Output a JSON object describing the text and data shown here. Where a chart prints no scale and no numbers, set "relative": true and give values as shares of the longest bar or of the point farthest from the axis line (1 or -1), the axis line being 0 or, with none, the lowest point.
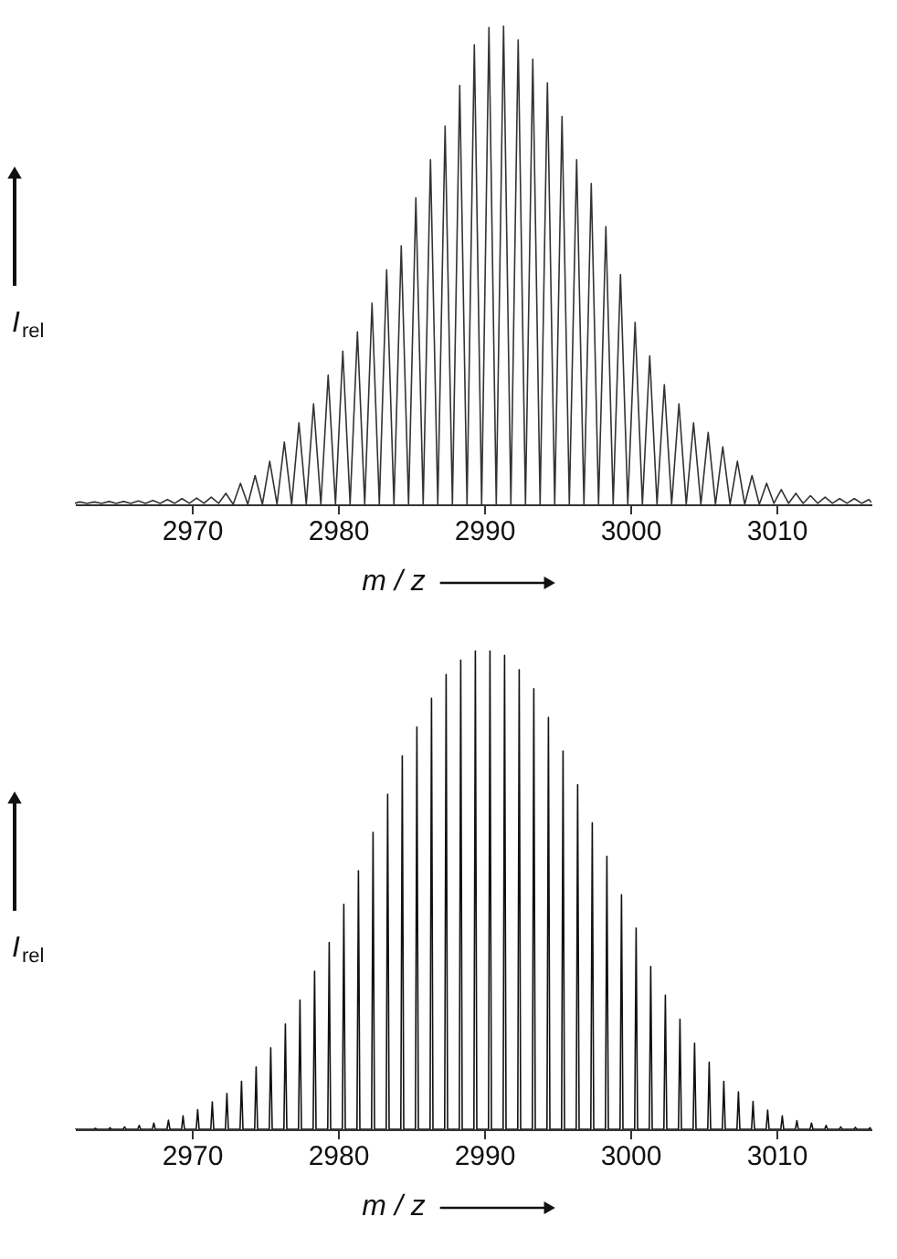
{
  "chart_data": [
    {
      "type": "line",
      "relative": true,
      "xlabel": "m / z",
      "ylabel": "I$_{rel}$",
      "xlim": [
        2962,
        3016.5
      ],
      "xticks": [
        2970,
        2980,
        2990,
        3000,
        3010
      ],
      "grid": false,
      "marker": "none",
      "line_style": "solid",
      "series": [
        {
          "color": "#333333",
          "x": [
            2962,
            2962.33,
            2962.83,
            2963.33,
            2963.83,
            2964.33,
            2964.83,
            2965.33,
            2965.83,
            2966.33,
            2966.83,
            2967.33,
            2967.83,
            2968.33,
            2968.83,
            2969.33,
            2969.83,
            2970.33,
            2970.83,
            2971.33,
            2971.83,
            2972.33,
            2972.83,
            2973.33,
            2973.83,
            2974.33,
            2974.83,
            2975.33,
            2975.83,
            2976.33,
            2976.83,
            2977.33,
            2977.83,
            2978.33,
            2978.83,
            2979.33,
            2979.83,
            2980.33,
            2980.83,
            2981.33,
            2981.83,
            2982.33,
            2982.83,
            2983.33,
            2983.83,
            2984.33,
            2984.83,
            2985.33,
            2985.83,
            2986.33,
            2986.83,
            2987.33,
            2987.83,
            2988.33,
            2988.83,
            2989.33,
            2989.83,
            2990.33,
            2990.83,
            2991.33,
            2991.83,
            2992.33,
            2992.83,
            2993.33,
            2993.83,
            2994.33,
            2994.83,
            2995.33,
            2995.83,
            2996.33,
            2996.83,
            2997.33,
            2997.83,
            2998.33,
            2998.83,
            2999.33,
            2999.83,
            3000.33,
            3000.83,
            3001.33,
            3001.83,
            3002.33,
            3002.83,
            3003.33,
            3003.83,
            3004.33,
            3004.83,
            3005.33,
            3005.83,
            3006.33,
            3006.83,
            3007.33,
            3007.83,
            3008.33,
            3008.83,
            3009.33,
            3009.83,
            3010.33,
            3010.83,
            3011.33,
            3011.83,
            3012.33,
            3012.83,
            3013.33,
            3013.83,
            3014.33,
            3014.83,
            3015.33,
            3015.83,
            3016.33,
            3016.5
          ],
          "values": [
            0.002,
            0.005,
            0.002,
            0.005,
            0.002,
            0.006,
            0.002,
            0.006,
            0.002,
            0.007,
            0.002,
            0.008,
            0.002,
            0.01,
            0.002,
            0.012,
            0.002,
            0.013,
            0.002,
            0.015,
            0.002,
            0.023,
            0,
            0.044,
            0,
            0.06,
            0,
            0.09,
            0,
            0.13,
            0,
            0.17,
            0,
            0.21,
            0,
            0.27,
            0,
            0.32,
            0,
            0.36,
            0,
            0.42,
            0,
            0.49,
            0,
            0.54,
            0,
            0.64,
            0,
            0.72,
            0,
            0.79,
            0,
            0.875,
            0,
            0.96,
            0,
            0.996,
            0,
            1.0,
            0,
            0.97,
            0,
            0.93,
            0,
            0.88,
            0,
            0.81,
            0,
            0.72,
            0,
            0.67,
            0,
            0.58,
            0,
            0.48,
            0,
            0.38,
            0,
            0.31,
            0,
            0.25,
            0,
            0.21,
            0,
            0.17,
            0,
            0.15,
            0,
            0.12,
            0,
            0.09,
            0,
            0.06,
            0,
            0.044,
            0.002,
            0.031,
            0.002,
            0.023,
            0.002,
            0.018,
            0.002,
            0.015,
            0.002,
            0.012,
            0.002,
            0.012,
            0.002,
            0.01,
            0.004
          ]
        }
      ]
    },
    {
      "type": "line",
      "relative": true,
      "xlabel": "m / z",
      "ylabel": "I$_{rel}$",
      "xlim": [
        2962,
        3016.5
      ],
      "xticks": [
        2970,
        2980,
        2990,
        3000,
        3010
      ],
      "grid": false,
      "marker": "none",
      "line_style": "solid",
      "series": [
        {
          "color": "#111111",
          "x": [
            2962,
            2963.3,
            2963.4,
            2963.5,
            2964.3,
            2964.4,
            2964.5,
            2965.3,
            2965.4,
            2965.5,
            2966.3,
            2966.4,
            2966.5,
            2967.3,
            2967.4,
            2967.5,
            2968.3,
            2968.4,
            2968.5,
            2969.3,
            2969.4,
            2969.5,
            2970.3,
            2970.4,
            2970.5,
            2971.3,
            2971.4,
            2971.5,
            2972.3,
            2972.4,
            2972.5,
            2973.3,
            2973.4,
            2973.5,
            2974.3,
            2974.4,
            2974.5,
            2975.3,
            2975.4,
            2975.5,
            2976.3,
            2976.4,
            2976.5,
            2977.3,
            2977.4,
            2977.5,
            2978.3,
            2978.4,
            2978.5,
            2979.3,
            2979.4,
            2979.5,
            2980.3,
            2980.4,
            2980.5,
            2981.3,
            2981.4,
            2981.5,
            2982.3,
            2982.4,
            2982.5,
            2983.3,
            2983.4,
            2983.5,
            2984.3,
            2984.4,
            2984.5,
            2985.3,
            2985.4,
            2985.5,
            2986.3,
            2986.4,
            2986.5,
            2987.3,
            2987.4,
            2987.5,
            2988.3,
            2988.4,
            2988.5,
            2989.3,
            2989.4,
            2989.5,
            2990.3,
            2990.4,
            2990.5,
            2991.3,
            2991.4,
            2991.5,
            2992.3,
            2992.4,
            2992.5,
            2993.3,
            2993.4,
            2993.5,
            2994.3,
            2994.4,
            2994.5,
            2995.3,
            2995.4,
            2995.5,
            2996.3,
            2996.4,
            2996.5,
            2997.3,
            2997.4,
            2997.5,
            2998.3,
            2998.4,
            2998.5,
            2999.3,
            2999.4,
            2999.5,
            3000.3,
            3000.4,
            3000.5,
            3001.3,
            3001.4,
            3001.5,
            3002.3,
            3002.4,
            3002.5,
            3003.3,
            3003.4,
            3003.5,
            3004.3,
            3004.4,
            3004.5,
            3005.3,
            3005.4,
            3005.5,
            3006.3,
            3006.4,
            3006.5,
            3007.3,
            3007.4,
            3007.5,
            3008.3,
            3008.4,
            3008.5,
            3009.3,
            3009.4,
            3009.5,
            3010.3,
            3010.4,
            3010.5,
            3011.3,
            3011.4,
            3011.5,
            3012.3,
            3012.4,
            3012.5,
            3013.3,
            3013.4,
            3013.5,
            3014.3,
            3014.4,
            3014.5,
            3015.3,
            3015.4,
            3015.5,
            3016.3,
            3016.4,
            3016.5
          ],
          "values": [
            0,
            0,
            0.002,
            0,
            0,
            0.003,
            0,
            0,
            0.005,
            0,
            0,
            0.008,
            0,
            0,
            0.013,
            0,
            0,
            0.019,
            0,
            0,
            0.028,
            0,
            0,
            0.041,
            0,
            0,
            0.057,
            0,
            0,
            0.075,
            0,
            0,
            0.1,
            0,
            0,
            0.13,
            0,
            0,
            0.17,
            0,
            0,
            0.22,
            0,
            0,
            0.27,
            0,
            0,
            0.33,
            0,
            0,
            0.39,
            0,
            0,
            0.47,
            0,
            0,
            0.54,
            0,
            0,
            0.62,
            0,
            0,
            0.7,
            0,
            0,
            0.78,
            0,
            0,
            0.84,
            0,
            0,
            0.9,
            0,
            0,
            0.95,
            0,
            0,
            0.98,
            0,
            0,
            1.0,
            0,
            0,
            1.0,
            0,
            0,
            0.99,
            0,
            0,
            0.96,
            0,
            0,
            0.92,
            0,
            0,
            0.86,
            0,
            0,
            0.79,
            0,
            0,
            0.72,
            0,
            0,
            0.64,
            0,
            0,
            0.57,
            0,
            0,
            0.49,
            0,
            0,
            0.42,
            0,
            0,
            0.34,
            0,
            0,
            0.28,
            0,
            0,
            0.23,
            0,
            0,
            0.18,
            0,
            0,
            0.14,
            0,
            0,
            0.1,
            0,
            0,
            0.078,
            0,
            0,
            0.058,
            0,
            0,
            0.04,
            0,
            0,
            0.028,
            0,
            0,
            0.018,
            0,
            0,
            0.013,
            0,
            0,
            0.008,
            0,
            0,
            0.005,
            0,
            0,
            0.004,
            0,
            0,
            0.003,
            0
          ]
        }
      ]
    }
  ]
}
